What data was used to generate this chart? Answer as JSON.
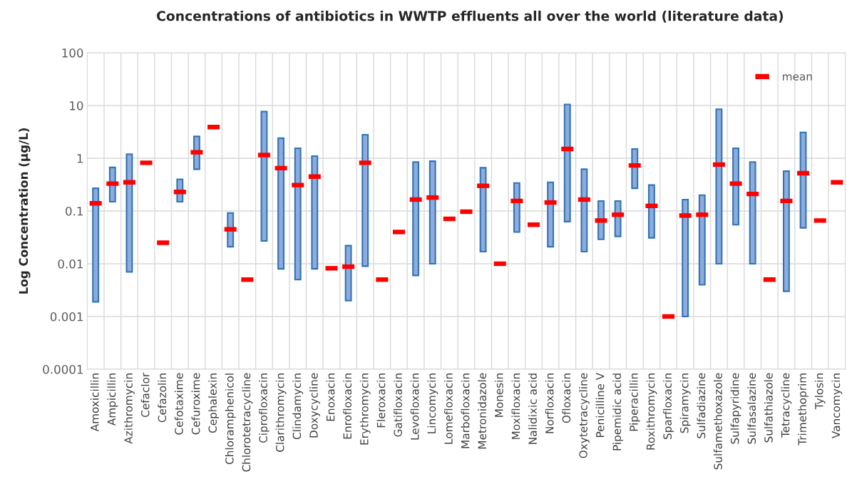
{
  "chart_data": {
    "type": "bar",
    "title": "Concentrations of antibiotics in WWTP effluents all over the world (literature data)",
    "ylabel": "Log Concentration (µg/L)",
    "categories": [
      "Amoxicillin",
      "Ampicillin",
      "Azithromycin",
      "Cefaclor",
      "Cefazolin",
      "Cefotaxime",
      "Cefuroxime",
      "Cephalexin",
      "Chloramphenicol",
      "Chlorotetracycline",
      "Ciprofloxacin",
      "Clarithromycin",
      "Clindamycin",
      "Doxycycline",
      "Enoxacin",
      "Enrofloxacin",
      "Erythromycin",
      "Fleroxacin",
      "Gatifloxacin",
      "Levofloxacin",
      "Lincomycin",
      "Lomefloxacin",
      "Marbofloxacin",
      "Metronidazole",
      "Monesin",
      "Moxifloxacin",
      "Nalidixic acid",
      "Norfloxacin",
      "Ofloxacin",
      "Oxytetracycline",
      "Penicilline V",
      "Pipemidic acid",
      "Piperacillin",
      "Roxithromycin",
      "Sparfloxacin",
      "Spiramycin",
      "Sulfadiazine",
      "Sulfamethoxazole",
      "Sulfapyridine",
      "Sulfasalazine",
      "Sulfathiazole",
      "Tetracycline",
      "Trimethoprim",
      "Tylosin",
      "Vancomycin"
    ],
    "series": [
      {
        "color": "#8faadc",
        "values": [
          0.2681,
          0.52,
          1.193,
          null,
          null,
          0.25,
          1.98,
          null,
          0.071,
          null,
          7.673,
          2.392,
          1.545,
          1.092,
          null,
          0.02,
          2.791,
          null,
          null,
          0.844,
          0.87,
          null,
          null,
          0.643,
          null,
          0.3,
          null,
          0.329,
          10.437,
          0.603,
          0.126,
          0.122,
          1.23,
          0.279,
          null,
          0.164,
          0.196,
          8.49,
          1.495,
          0.84,
          null,
          0.567,
          3.052,
          null,
          null
        ],
        "base": [
          0.0019,
          0.15,
          0.007,
          null,
          null,
          0.15,
          0.62,
          null,
          0.021,
          null,
          0.027,
          0.008,
          0.005,
          0.008,
          null,
          0.002,
          0.009,
          null,
          null,
          0.006,
          0.01,
          null,
          null,
          0.017,
          null,
          0.04,
          null,
          0.021,
          0.063,
          0.017,
          0.029,
          0.033,
          0.27,
          0.031,
          null,
          0.001,
          0.004,
          0.01,
          0.055,
          0.01,
          null,
          0.003,
          0.048,
          null,
          null
        ]
      },
      {
        "type": "scatter",
        "name": "mean",
        "color": "#ff0000",
        "values": [
          0.14,
          0.33,
          0.35,
          0.82,
          0.025,
          0.23,
          1.3,
          3.9,
          0.045,
          0.005,
          1.15,
          0.65,
          0.31,
          0.45,
          0.0082,
          0.0088,
          0.82,
          0.005,
          0.04,
          0.165,
          0.18,
          0.071,
          0.097,
          0.3,
          0.01,
          0.155,
          0.055,
          0.145,
          1.5,
          0.165,
          0.066,
          0.085,
          0.73,
          0.125,
          0.001,
          0.082,
          0.085,
          0.76,
          0.33,
          0.21,
          0.005,
          0.155,
          0.52,
          0.066,
          0.35
        ]
      }
    ],
    "log": "y",
    "ylim": [
      0.0001,
      100
    ],
    "yticks": [
      0.0001,
      0.001,
      0.01,
      0.1,
      1,
      10,
      100
    ],
    "grid": true,
    "legend": "top right"
  }
}
